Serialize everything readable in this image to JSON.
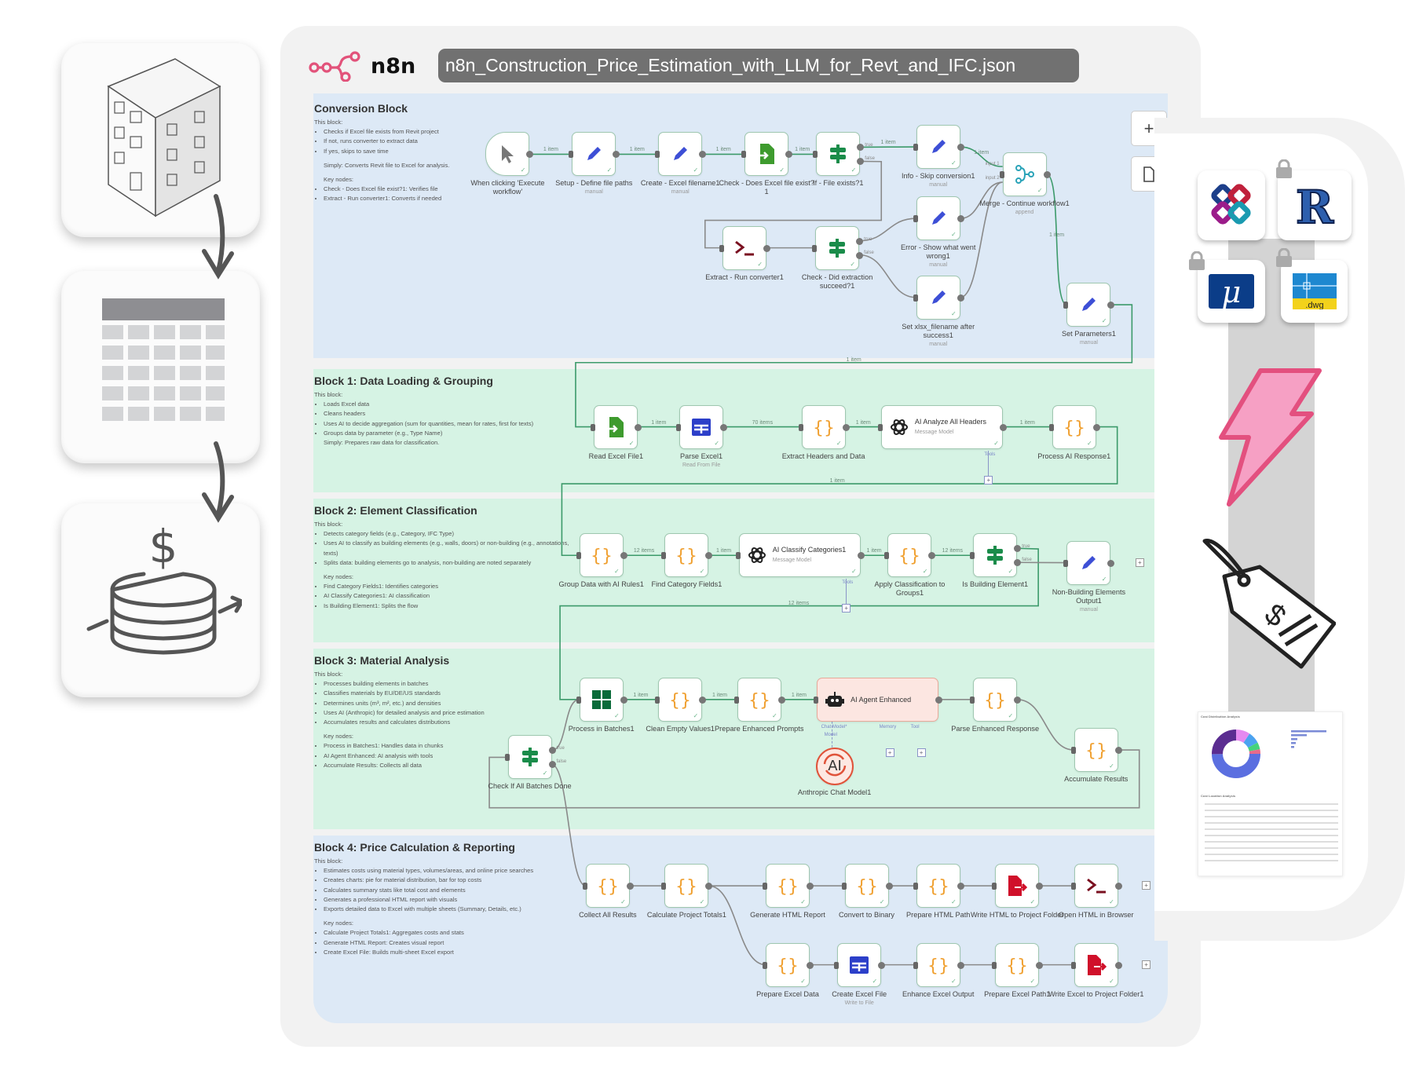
{
  "app": {
    "brand": "n8n",
    "filename": "n8n_Construction_Price_Estimation_with_LLM_for_Revt_and_IFC.json",
    "accent": "#e2527a"
  },
  "left_cards": [
    {
      "icon": "building-icon"
    },
    {
      "icon": "spreadsheet-table-icon"
    },
    {
      "icon": "coins-dollar-icon"
    }
  ],
  "canvas_controls": {
    "zoom_in": "+",
    "fit": "document-icon"
  },
  "blocks": [
    {
      "title": "Conversion Block",
      "intro": "This block:",
      "bullets": [
        "Checks if Excel file exists from Revit project",
        "If not, runs converter to extract data",
        "If yes, skips to save time"
      ],
      "simply": "Simply: Converts Revit file to Excel for analysis.",
      "key_title": "Key nodes:",
      "key_nodes": [
        "Check - Does Excel file exist?1: Verifies file",
        "Extract - Run converter1: Converts if needed"
      ],
      "color": "#dde9f6"
    },
    {
      "title": "Block 1: Data Loading & Grouping",
      "intro": "This block:",
      "bullets": [
        "Loads Excel data",
        "Cleans headers",
        "Uses AI to decide aggregation (sum for quantities, mean for rates, first for texts)",
        "Groups data by parameter (e.g., Type Name)"
      ],
      "simply": "Simply: Prepares raw data for classification.",
      "color": "#d6f3e4"
    },
    {
      "title": "Block 2: Element Classification",
      "intro": "This block:",
      "bullets": [
        "Detects category fields (e.g., Category, IFC Type)",
        "Uses AI to classify as building elements (e.g., walls, doors) or non-building (e.g., annotations, texts)",
        "Splits data: building elements go to analysis, non-building are noted separately"
      ],
      "key_title": "Key nodes:",
      "key_nodes": [
        "Find Category Fields1: Identifies categories",
        "AI Classify Categories1: AI classification",
        "Is Building Element1: Splits the flow"
      ],
      "color": "#d6f3e4"
    },
    {
      "title": "Block 3: Material Analysis",
      "intro": "This block:",
      "bullets": [
        "Processes building elements in batches",
        "Classifies materials by EU/DE/US standards",
        "Determines units (m³, m², etc.) and densities",
        "Uses AI (Anthropic) for detailed analysis and price estimation",
        "Accumulates results and calculates distributions"
      ],
      "key_title": "Key nodes:",
      "key_nodes": [
        "Process in Batches1: Handles data in chunks",
        "AI Agent Enhanced: AI analysis with tools",
        "Accumulate Results: Collects all data"
      ],
      "color": "#d6f3e4"
    },
    {
      "title": "Block 4: Price Calculation & Reporting",
      "intro": "This block:",
      "bullets": [
        "Estimates costs using material types, volumes/areas, and online price searches",
        "Creates charts: pie for material distribution, bar for top costs",
        "Calculates summary stats like total cost and elements",
        "Generates a professional HTML report with visuals",
        "Exports detailed data to Excel with multiple sheets (Summary, Details, etc.)"
      ],
      "key_title": "Key nodes:",
      "key_nodes": [
        "Calculate Project Totals1: Aggregates costs and stats",
        "Generate HTML Report: Creates visual report",
        "Create Excel File: Builds multi-sheet Excel export"
      ],
      "color": "#dde9f6"
    }
  ],
  "nodes": [
    {
      "id": "trigger",
      "label": "When clicking 'Execute workflow'",
      "icon": "cursor-icon"
    },
    {
      "id": "setup",
      "label": "Setup - Define file paths",
      "sub": "manual",
      "icon": "pencil-icon"
    },
    {
      "id": "create",
      "label": "Create - Excel filename1",
      "sub": "manual",
      "icon": "pencil-icon"
    },
    {
      "id": "check",
      "label": "Check - Does Excel file exist?1",
      "icon": "file-import-icon"
    },
    {
      "id": "iffile",
      "label": "If - File exists?1",
      "icon": "if-icon"
    },
    {
      "id": "info",
      "label": "Info - Skip conversion1",
      "sub": "manual",
      "icon": "pencil-icon"
    },
    {
      "id": "merge",
      "label": "Merge - Continue workflow1",
      "sub": "append",
      "icon": "merge-icon"
    },
    {
      "id": "extract",
      "label": "Extract - Run converter1",
      "icon": "terminal-icon"
    },
    {
      "id": "checkdid",
      "label": "Check - Did extraction succeed?1",
      "icon": "if-icon"
    },
    {
      "id": "error",
      "label": "Error - Show what went wrong1",
      "sub": "manual",
      "icon": "pencil-icon"
    },
    {
      "id": "setxlsx",
      "label": "Set xlsx_filename after success1",
      "sub": "manual",
      "icon": "pencil-icon"
    },
    {
      "id": "setparams",
      "label": "Set Parameters1",
      "sub": "manual",
      "icon": "pencil-icon"
    },
    {
      "id": "readexcel",
      "label": "Read Excel File1",
      "icon": "file-import-icon"
    },
    {
      "id": "parse",
      "label": "Parse Excel1",
      "sub": "Read From File",
      "icon": "table-icon"
    },
    {
      "id": "extracthdr",
      "label": "Extract Headers and Data",
      "icon": "code-braces-icon"
    },
    {
      "id": "aianalyze",
      "label": "",
      "title": "AI Analyze All Headers",
      "wsub": "Message Model",
      "icon": "openai-icon",
      "wide": true
    },
    {
      "id": "procai",
      "label": "Process AI Response1",
      "icon": "code-braces-icon"
    },
    {
      "id": "group",
      "label": "Group Data with AI Rules1",
      "icon": "code-braces-icon"
    },
    {
      "id": "findcat",
      "label": "Find Category Fields1",
      "icon": "code-braces-icon"
    },
    {
      "id": "aiclassify",
      "label": "",
      "title": "AI Classify Categories1",
      "wsub": "Message Model",
      "icon": "openai-icon",
      "wide": true
    },
    {
      "id": "apply",
      "label": "Apply Classification to Groups1",
      "icon": "code-braces-icon"
    },
    {
      "id": "isbuild",
      "label": "Is Building Element1",
      "icon": "if-icon"
    },
    {
      "id": "nonbuild",
      "label": "Non-Building Elements Output1",
      "sub": "manual",
      "icon": "pencil-icon"
    },
    {
      "id": "batches",
      "label": "Process in Batches1",
      "icon": "batches-icon"
    },
    {
      "id": "clean",
      "label": "Clean Empty Values1",
      "icon": "code-braces-icon"
    },
    {
      "id": "prepare",
      "label": "Prepare Enhanced Prompts",
      "icon": "code-braces-icon"
    },
    {
      "id": "agent",
      "label": "",
      "title": "AI Agent Enhanced",
      "icon": "robot-icon",
      "wide": true,
      "agent": true
    },
    {
      "id": "parseenh",
      "label": "Parse Enhanced Response",
      "icon": "code-braces-icon"
    },
    {
      "id": "accum",
      "label": "Accumulate Results",
      "icon": "code-braces-icon"
    },
    {
      "id": "checkall",
      "label": "Check If All Batches Done",
      "icon": "if-icon"
    },
    {
      "id": "anthropic",
      "label": "Anthropic Chat Model1",
      "icon": "anthropic-icon",
      "circle": true
    },
    {
      "id": "collect",
      "label": "Collect All Results",
      "icon": "code-braces-icon"
    },
    {
      "id": "calc",
      "label": "Calculate Project Totals1",
      "icon": "code-braces-icon"
    },
    {
      "id": "genhtml",
      "label": "Generate HTML Report",
      "icon": "code-braces-icon"
    },
    {
      "id": "convert",
      "label": "Convert to Binary",
      "icon": "code-braces-icon"
    },
    {
      "id": "prephtml",
      "label": "Prepare HTML Path",
      "icon": "code-braces-icon"
    },
    {
      "id": "writehtml",
      "label": "Write HTML to Project Folder",
      "icon": "file-export-icon"
    },
    {
      "id": "openhtml",
      "label": "Open HTML in Browser",
      "icon": "terminal-icon"
    },
    {
      "id": "prepxl",
      "label": "Prepare Excel Data",
      "icon": "code-braces-icon"
    },
    {
      "id": "createxl",
      "label": "Create Excel File",
      "sub": "Write to File",
      "icon": "table-icon"
    },
    {
      "id": "enhxl",
      "label": "Enhance Excel Output",
      "icon": "code-braces-icon"
    },
    {
      "id": "prepxlpath",
      "label": "Prepare Excel Path1",
      "icon": "code-braces-icon"
    },
    {
      "id": "writexl",
      "label": "Write Excel to Project Folder1",
      "icon": "file-export-icon"
    }
  ],
  "edges": [
    {
      "from": "trigger",
      "to": "setup",
      "label": "1 item",
      "done": true
    },
    {
      "from": "setup",
      "to": "create",
      "label": "1 item",
      "done": true
    },
    {
      "from": "create",
      "to": "check",
      "label": "1 item",
      "done": true
    },
    {
      "from": "check",
      "to": "iffile",
      "label": "1 item",
      "done": true
    },
    {
      "from": "iffile",
      "to": "info",
      "port": "true",
      "label": "1 item",
      "done": true
    },
    {
      "from": "iffile",
      "to": "extract",
      "port": "false"
    },
    {
      "from": "info",
      "to": "merge",
      "label": "1 item",
      "done": true,
      "in": 1
    },
    {
      "from": "extract",
      "to": "checkdid"
    },
    {
      "from": "checkdid",
      "to": "error",
      "port": "true"
    },
    {
      "from": "checkdid",
      "to": "setxlsx",
      "port": "false"
    },
    {
      "from": "error",
      "to": "merge",
      "in": 2
    },
    {
      "from": "setxlsx",
      "to": "merge",
      "in": 2
    },
    {
      "from": "merge",
      "to": "setparams",
      "label": "1 item",
      "done": true
    },
    {
      "from": "setparams",
      "to": "readexcel",
      "label": "1 item",
      "done": true
    },
    {
      "from": "readexcel",
      "to": "parse",
      "label": "1 item",
      "done": true
    },
    {
      "from": "parse",
      "to": "extracthdr",
      "label": "70 items",
      "done": true
    },
    {
      "from": "extracthdr",
      "to": "aianalyze",
      "label": "1 item",
      "done": true
    },
    {
      "from": "aianalyze",
      "to": "procai",
      "label": "1 item",
      "done": true
    },
    {
      "from": "procai",
      "to": "group",
      "label": "1 item",
      "done": true
    },
    {
      "from": "group",
      "to": "findcat",
      "label": "12 items",
      "done": true
    },
    {
      "from": "findcat",
      "to": "aiclassify",
      "label": "1 item",
      "done": true
    },
    {
      "from": "aiclassify",
      "to": "apply",
      "label": "1 item",
      "done": true
    },
    {
      "from": "apply",
      "to": "isbuild",
      "label": "12 items",
      "done": true
    },
    {
      "from": "isbuild",
      "to": "batches",
      "port": "true",
      "label": "12 items",
      "done": true
    },
    {
      "from": "isbuild",
      "to": "nonbuild",
      "port": "false"
    },
    {
      "from": "batches",
      "to": "clean",
      "label": "1 item",
      "done": true
    },
    {
      "from": "clean",
      "to": "prepare",
      "label": "1 item",
      "done": true
    },
    {
      "from": "prepare",
      "to": "agent",
      "label": "1 item",
      "done": true
    },
    {
      "from": "agent",
      "to": "parseenh"
    },
    {
      "from": "parseenh",
      "to": "accum"
    },
    {
      "from": "accum",
      "to": "checkall"
    },
    {
      "from": "checkall",
      "to": "batches",
      "port": "true"
    },
    {
      "from": "checkall",
      "to": "collect",
      "port": "false"
    },
    {
      "from": "collect",
      "to": "calc"
    },
    {
      "from": "calc",
      "to": "genhtml"
    },
    {
      "from": "calc",
      "to": "prepxl"
    },
    {
      "from": "genhtml",
      "to": "convert"
    },
    {
      "from": "convert",
      "to": "prephtml"
    },
    {
      "from": "prephtml",
      "to": "writehtml"
    },
    {
      "from": "writehtml",
      "to": "openhtml"
    },
    {
      "from": "prepxl",
      "to": "createxl"
    },
    {
      "from": "createxl",
      "to": "enhxl"
    },
    {
      "from": "enhxl",
      "to": "prepxlpath"
    },
    {
      "from": "prepxlpath",
      "to": "writexl"
    }
  ],
  "port_labels": {
    "true": "true",
    "false": "false",
    "input1": "input 1",
    "input2": "input 2",
    "tools": "Tools",
    "chat_model": "Chat Model*",
    "memory": "Memory",
    "tool": "Tool",
    "model": "Model"
  },
  "right_panel": {
    "tools": [
      {
        "icon": "bimcollab-logo-icon"
      },
      {
        "icon": "revit-logo-icon",
        "locked": true
      },
      {
        "icon": "microstation-logo-icon",
        "locked": true
      },
      {
        "icon": "dwg-logo-icon",
        "text": ".dwg",
        "locked": true
      }
    ],
    "lightning_icon": "lightning-icon",
    "price_tag_icon": "price-tag-icon",
    "report": {
      "heading1": "Cost Distribution Analysis",
      "heading2": "Cost Location Analysis"
    }
  }
}
